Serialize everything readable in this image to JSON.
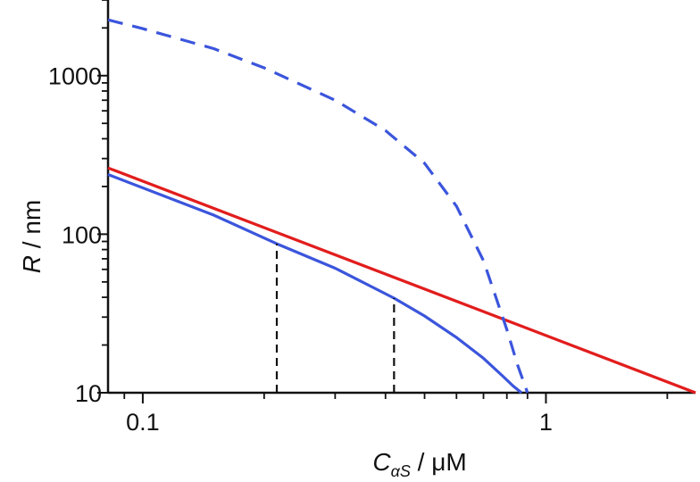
{
  "chart_data": {
    "type": "line",
    "x_scale": "log",
    "y_scale": "log",
    "xlim": [
      0.082,
      2.35
    ],
    "ylim": [
      10,
      3000
    ],
    "grid": false,
    "legend": "none",
    "xlabel": {
      "var": "C",
      "sub": "αS",
      "unit": " / μM"
    },
    "ylabel": {
      "var": "R",
      "unit": " / nm"
    },
    "x_major_ticks": [
      0.1,
      1
    ],
    "x_tick_labels": [
      "0.1",
      "1"
    ],
    "y_major_ticks": [
      10,
      100,
      1000
    ],
    "y_tick_labels": [
      "10",
      "100",
      "1000"
    ],
    "series": [
      {
        "color": "#e21d1d",
        "style": "solid",
        "x": [
          0.082,
          2.35
        ],
        "y": [
          262,
          10
        ]
      },
      {
        "color": "#3b55dc",
        "style": "solid",
        "x": [
          0.082,
          0.15,
          0.215,
          0.3,
          0.42,
          0.5,
          0.6,
          0.7,
          0.78,
          0.83,
          0.87
        ],
        "y": [
          238,
          132,
          87,
          61,
          39.5,
          30.5,
          22.3,
          16.5,
          12.8,
          11.0,
          10.0
        ]
      },
      {
        "color": "#3b55dc",
        "style": "dashed",
        "x": [
          0.082,
          0.1,
          0.15,
          0.2,
          0.3,
          0.4,
          0.5,
          0.6,
          0.7,
          0.8,
          0.85,
          0.9
        ],
        "y": [
          2250,
          1980,
          1480,
          1120,
          700,
          450,
          280,
          150,
          68,
          25,
          15,
          10
        ]
      }
    ],
    "reference_lines": [
      {
        "color": "#111111",
        "style": "dashed",
        "x": 0.215,
        "y_from": 10,
        "y_to": 87
      },
      {
        "color": "#111111",
        "style": "dashed",
        "x": 0.42,
        "y_from": 10,
        "y_to": 39.5
      }
    ]
  }
}
